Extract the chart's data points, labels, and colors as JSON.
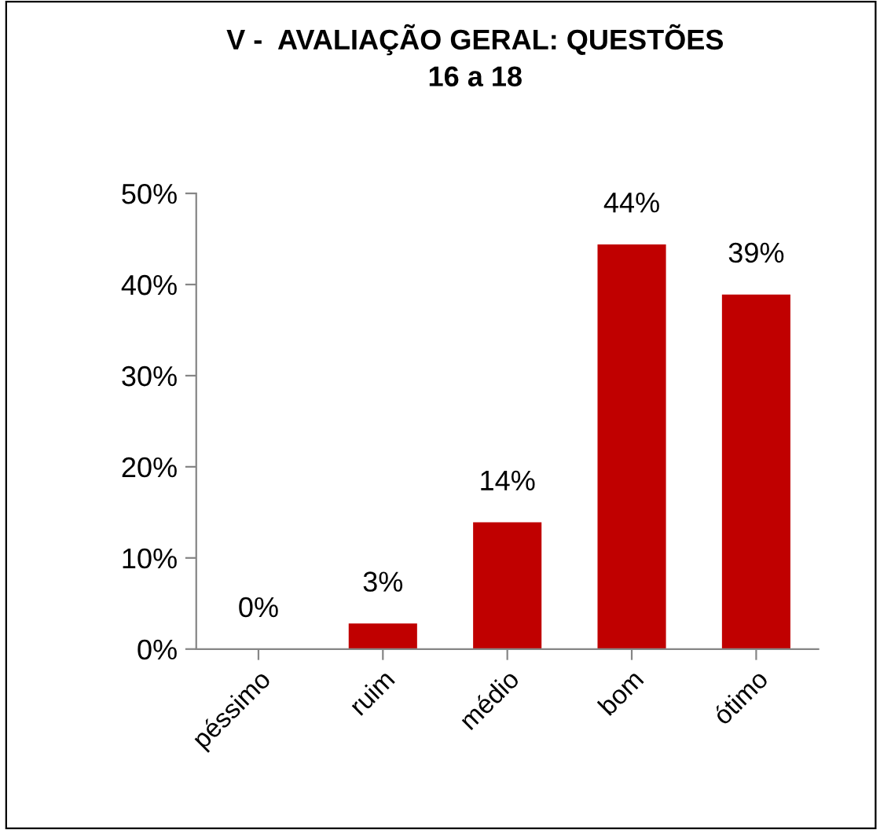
{
  "chart_data": {
    "type": "bar",
    "title": "V -  AVALIAÇÃO GERAL: QUESTÕES\n16 a 18",
    "categories": [
      "péssimo",
      "ruim",
      "médio",
      "bom",
      "ótimo"
    ],
    "values": [
      0,
      2.8,
      13.9,
      44.4,
      38.9
    ],
    "value_labels": [
      "0%",
      "3%",
      "14%",
      "44%",
      "39%"
    ],
    "color": "#c00000",
    "ylim": [
      0,
      50
    ],
    "yticks": [
      {
        "value": 0,
        "label": "0%"
      },
      {
        "value": 10,
        "label": "10%"
      },
      {
        "value": 20,
        "label": "20%"
      },
      {
        "value": 30,
        "label": "30%"
      },
      {
        "value": 40,
        "label": "40%"
      },
      {
        "value": 50,
        "label": "50%"
      }
    ],
    "grid": false,
    "legend": false
  }
}
